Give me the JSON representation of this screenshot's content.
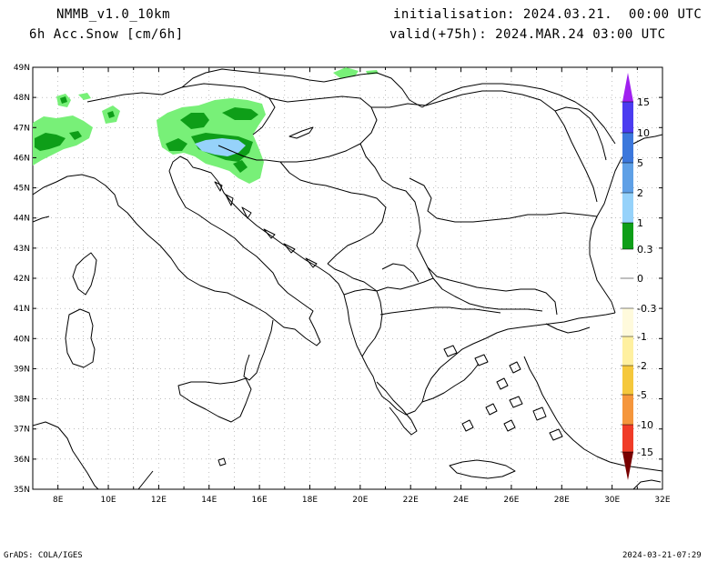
{
  "header": {
    "model": "NMMB_v1.0_10km",
    "field": "6h Acc.Snow [cm/6h]",
    "init": "initialisation: 2024.03.21.  00:00 UTC",
    "valid": "valid(+75h): 2024.MAR.24 03:00 UTC"
  },
  "footer": {
    "left": "GrADS: COLA/IGES",
    "right": "2024-03-21-07:29"
  },
  "map": {
    "lon_labels": [
      "8E",
      "10E",
      "12E",
      "14E",
      "16E",
      "18E",
      "20E",
      "22E",
      "24E",
      "26E",
      "28E",
      "30E",
      "32E"
    ],
    "lat_labels": [
      "49N",
      "48N",
      "47N",
      "46N",
      "45N",
      "44N",
      "43N",
      "42N",
      "41N",
      "40N",
      "39N",
      "38N",
      "37N",
      "36N",
      "35N"
    ],
    "grid_lines": true,
    "coastline_color": "#000000",
    "grid_color": "#999999"
  },
  "colorbar": {
    "labels": [
      "15",
      "10",
      "5",
      "2",
      "1",
      "0.3",
      "0",
      "-0.3",
      "-1",
      "-2",
      "-5",
      "-10",
      "-15"
    ],
    "colors_positive": [
      "#a020f0",
      "#4b3cf0",
      "#3c78dc",
      "#5fa0e6",
      "#96d2fa",
      "#0e9e18",
      "#78f078"
    ],
    "colors_negative": [
      "#fffadc",
      "#fff0a0",
      "#f5c83c",
      "#f5963c",
      "#f03c28",
      "#c80000",
      "#780000"
    ]
  },
  "snow_colors": {
    "light": "#78f078",
    "medium": "#46cd4a",
    "dark": "#0e9e18",
    "blue": "#96d2fa"
  }
}
